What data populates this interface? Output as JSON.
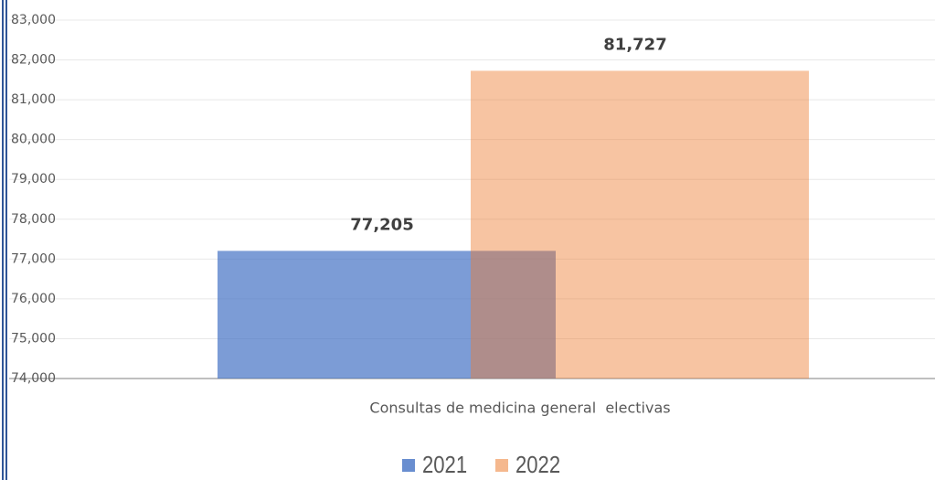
{
  "chart_data": {
    "type": "bar",
    "categories": [
      "Consultas de medicina general  electivas"
    ],
    "series": [
      {
        "name": "2021",
        "color": "#4472c4",
        "values": [
          77205
        ],
        "value_labels": [
          "77,205"
        ]
      },
      {
        "name": "2022",
        "color": "#ed7d31",
        "values": [
          81727
        ],
        "value_labels": [
          "81,727"
        ]
      }
    ],
    "ylim": [
      74000,
      83000
    ],
    "yticks": [
      {
        "value": 74000,
        "label": "74,000"
      },
      {
        "value": 75000,
        "label": "75,000"
      },
      {
        "value": 76000,
        "label": "76,000"
      },
      {
        "value": 77000,
        "label": "77,000"
      },
      {
        "value": 78000,
        "label": "78,000"
      },
      {
        "value": 79000,
        "label": "79,000"
      },
      {
        "value": 80000,
        "label": "80,000"
      },
      {
        "value": 81000,
        "label": "81,000"
      },
      {
        "value": 82000,
        "label": "82,000"
      },
      {
        "value": 83000,
        "label": "83,000"
      }
    ],
    "grid": true,
    "legend": "bottom"
  }
}
